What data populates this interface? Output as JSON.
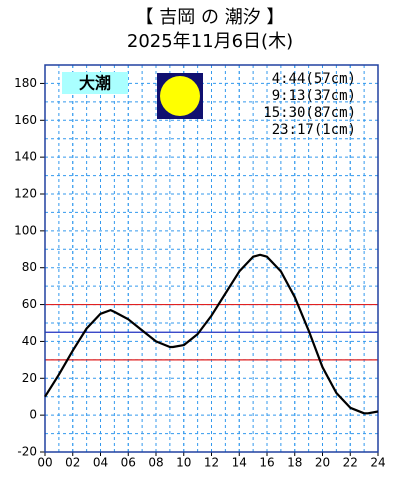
{
  "chart_data": {
    "type": "line",
    "title": "【 吉岡 の 潮汐 】",
    "subtitle": "2025年11月6日(木)",
    "tide_type": "大潮",
    "tide_events": [
      "4:44(57cm)",
      "9:13(37cm)",
      "15:30(87cm)",
      "23:17(1cm)"
    ],
    "x": [
      0,
      1,
      2,
      3,
      4,
      4.73,
      5,
      6,
      7,
      8,
      9,
      9.22,
      10,
      11,
      12,
      13,
      14,
      15,
      15.5,
      16,
      17,
      18,
      19,
      20,
      21,
      22,
      23,
      23.28,
      24
    ],
    "series": [
      {
        "color": "#000000",
        "values": [
          10,
          22,
          35,
          47,
          55,
          57,
          56,
          52,
          46,
          40,
          37,
          37,
          38,
          44,
          54,
          66,
          78,
          86,
          87,
          86,
          78,
          64,
          46,
          26,
          12,
          4,
          1,
          1,
          2
        ]
      }
    ],
    "reference_lines": [
      {
        "value": 60,
        "color": "#e02020"
      },
      {
        "value": 30,
        "color": "#e02020"
      },
      {
        "value": 45,
        "color": "#2030c0"
      }
    ],
    "xlim": [
      0,
      24
    ],
    "xticks": [
      {
        "value": 0,
        "label": "00"
      },
      {
        "value": 2,
        "label": "02"
      },
      {
        "value": 4,
        "label": "04"
      },
      {
        "value": 6,
        "label": "06"
      },
      {
        "value": 8,
        "label": "08"
      },
      10,
      12,
      14,
      16,
      18,
      20,
      22,
      24
    ],
    "ylim": [
      -20,
      190
    ],
    "yticks": [
      -20,
      0,
      20,
      40,
      60,
      80,
      100,
      120,
      140,
      160,
      180
    ],
    "grid": true
  }
}
